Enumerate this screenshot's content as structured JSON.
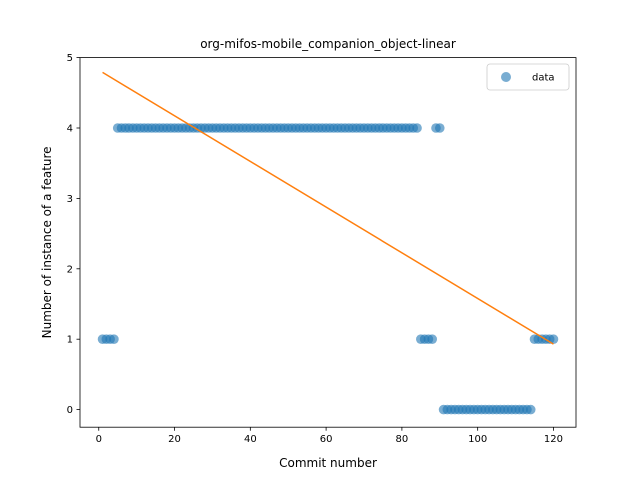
{
  "chart_data": {
    "type": "scatter",
    "title": "org-mifos-mobile_companion_object-linear",
    "xlabel": "Commit number",
    "ylabel": "Number of instance of a feature",
    "xlim": [
      -4.95,
      125.95
    ],
    "ylim": [
      -0.25,
      5.0
    ],
    "xticks": [
      0,
      20,
      40,
      60,
      80,
      100,
      120
    ],
    "yticks": [
      0,
      1,
      2,
      3,
      4,
      5
    ],
    "grid": false,
    "legend": {
      "placement": "top-right",
      "entries": [
        "data"
      ]
    },
    "colors": {
      "data": "#1f77b4",
      "fit": "#ff7f0e"
    },
    "series": [
      {
        "name": "data",
        "kind": "scatter",
        "x": [
          1,
          2,
          3,
          4,
          5,
          6,
          7,
          8,
          9,
          10,
          11,
          12,
          13,
          14,
          15,
          16,
          17,
          18,
          19,
          20,
          21,
          22,
          23,
          24,
          25,
          26,
          27,
          28,
          29,
          30,
          31,
          32,
          33,
          34,
          35,
          36,
          37,
          38,
          39,
          40,
          41,
          42,
          43,
          44,
          45,
          46,
          47,
          48,
          49,
          50,
          51,
          52,
          53,
          54,
          55,
          56,
          57,
          58,
          59,
          60,
          61,
          62,
          63,
          64,
          65,
          66,
          67,
          68,
          69,
          70,
          71,
          72,
          73,
          74,
          75,
          76,
          77,
          78,
          79,
          80,
          81,
          82,
          83,
          84,
          85,
          86,
          87,
          88,
          89,
          90,
          91,
          92,
          93,
          94,
          95,
          96,
          97,
          98,
          99,
          100,
          101,
          102,
          103,
          104,
          105,
          106,
          107,
          108,
          109,
          110,
          111,
          112,
          113,
          114,
          115,
          116,
          117,
          118,
          119,
          120
        ],
        "y": [
          1,
          1,
          1,
          1,
          4,
          4,
          4,
          4,
          4,
          4,
          4,
          4,
          4,
          4,
          4,
          4,
          4,
          4,
          4,
          4,
          4,
          4,
          4,
          4,
          4,
          4,
          4,
          4,
          4,
          4,
          4,
          4,
          4,
          4,
          4,
          4,
          4,
          4,
          4,
          4,
          4,
          4,
          4,
          4,
          4,
          4,
          4,
          4,
          4,
          4,
          4,
          4,
          4,
          4,
          4,
          4,
          4,
          4,
          4,
          4,
          4,
          4,
          4,
          4,
          4,
          4,
          4,
          4,
          4,
          4,
          4,
          4,
          4,
          4,
          4,
          4,
          4,
          4,
          4,
          4,
          4,
          4,
          4,
          4,
          1,
          1,
          1,
          1,
          4,
          4,
          0,
          0,
          0,
          0,
          0,
          0,
          0,
          0,
          0,
          0,
          0,
          0,
          0,
          0,
          0,
          0,
          0,
          0,
          0,
          0,
          0,
          0,
          0,
          0,
          1,
          1,
          1,
          1,
          1,
          1
        ]
      },
      {
        "kind": "line",
        "x": [
          1,
          120
        ],
        "y": [
          4.79,
          0.93
        ]
      }
    ]
  }
}
